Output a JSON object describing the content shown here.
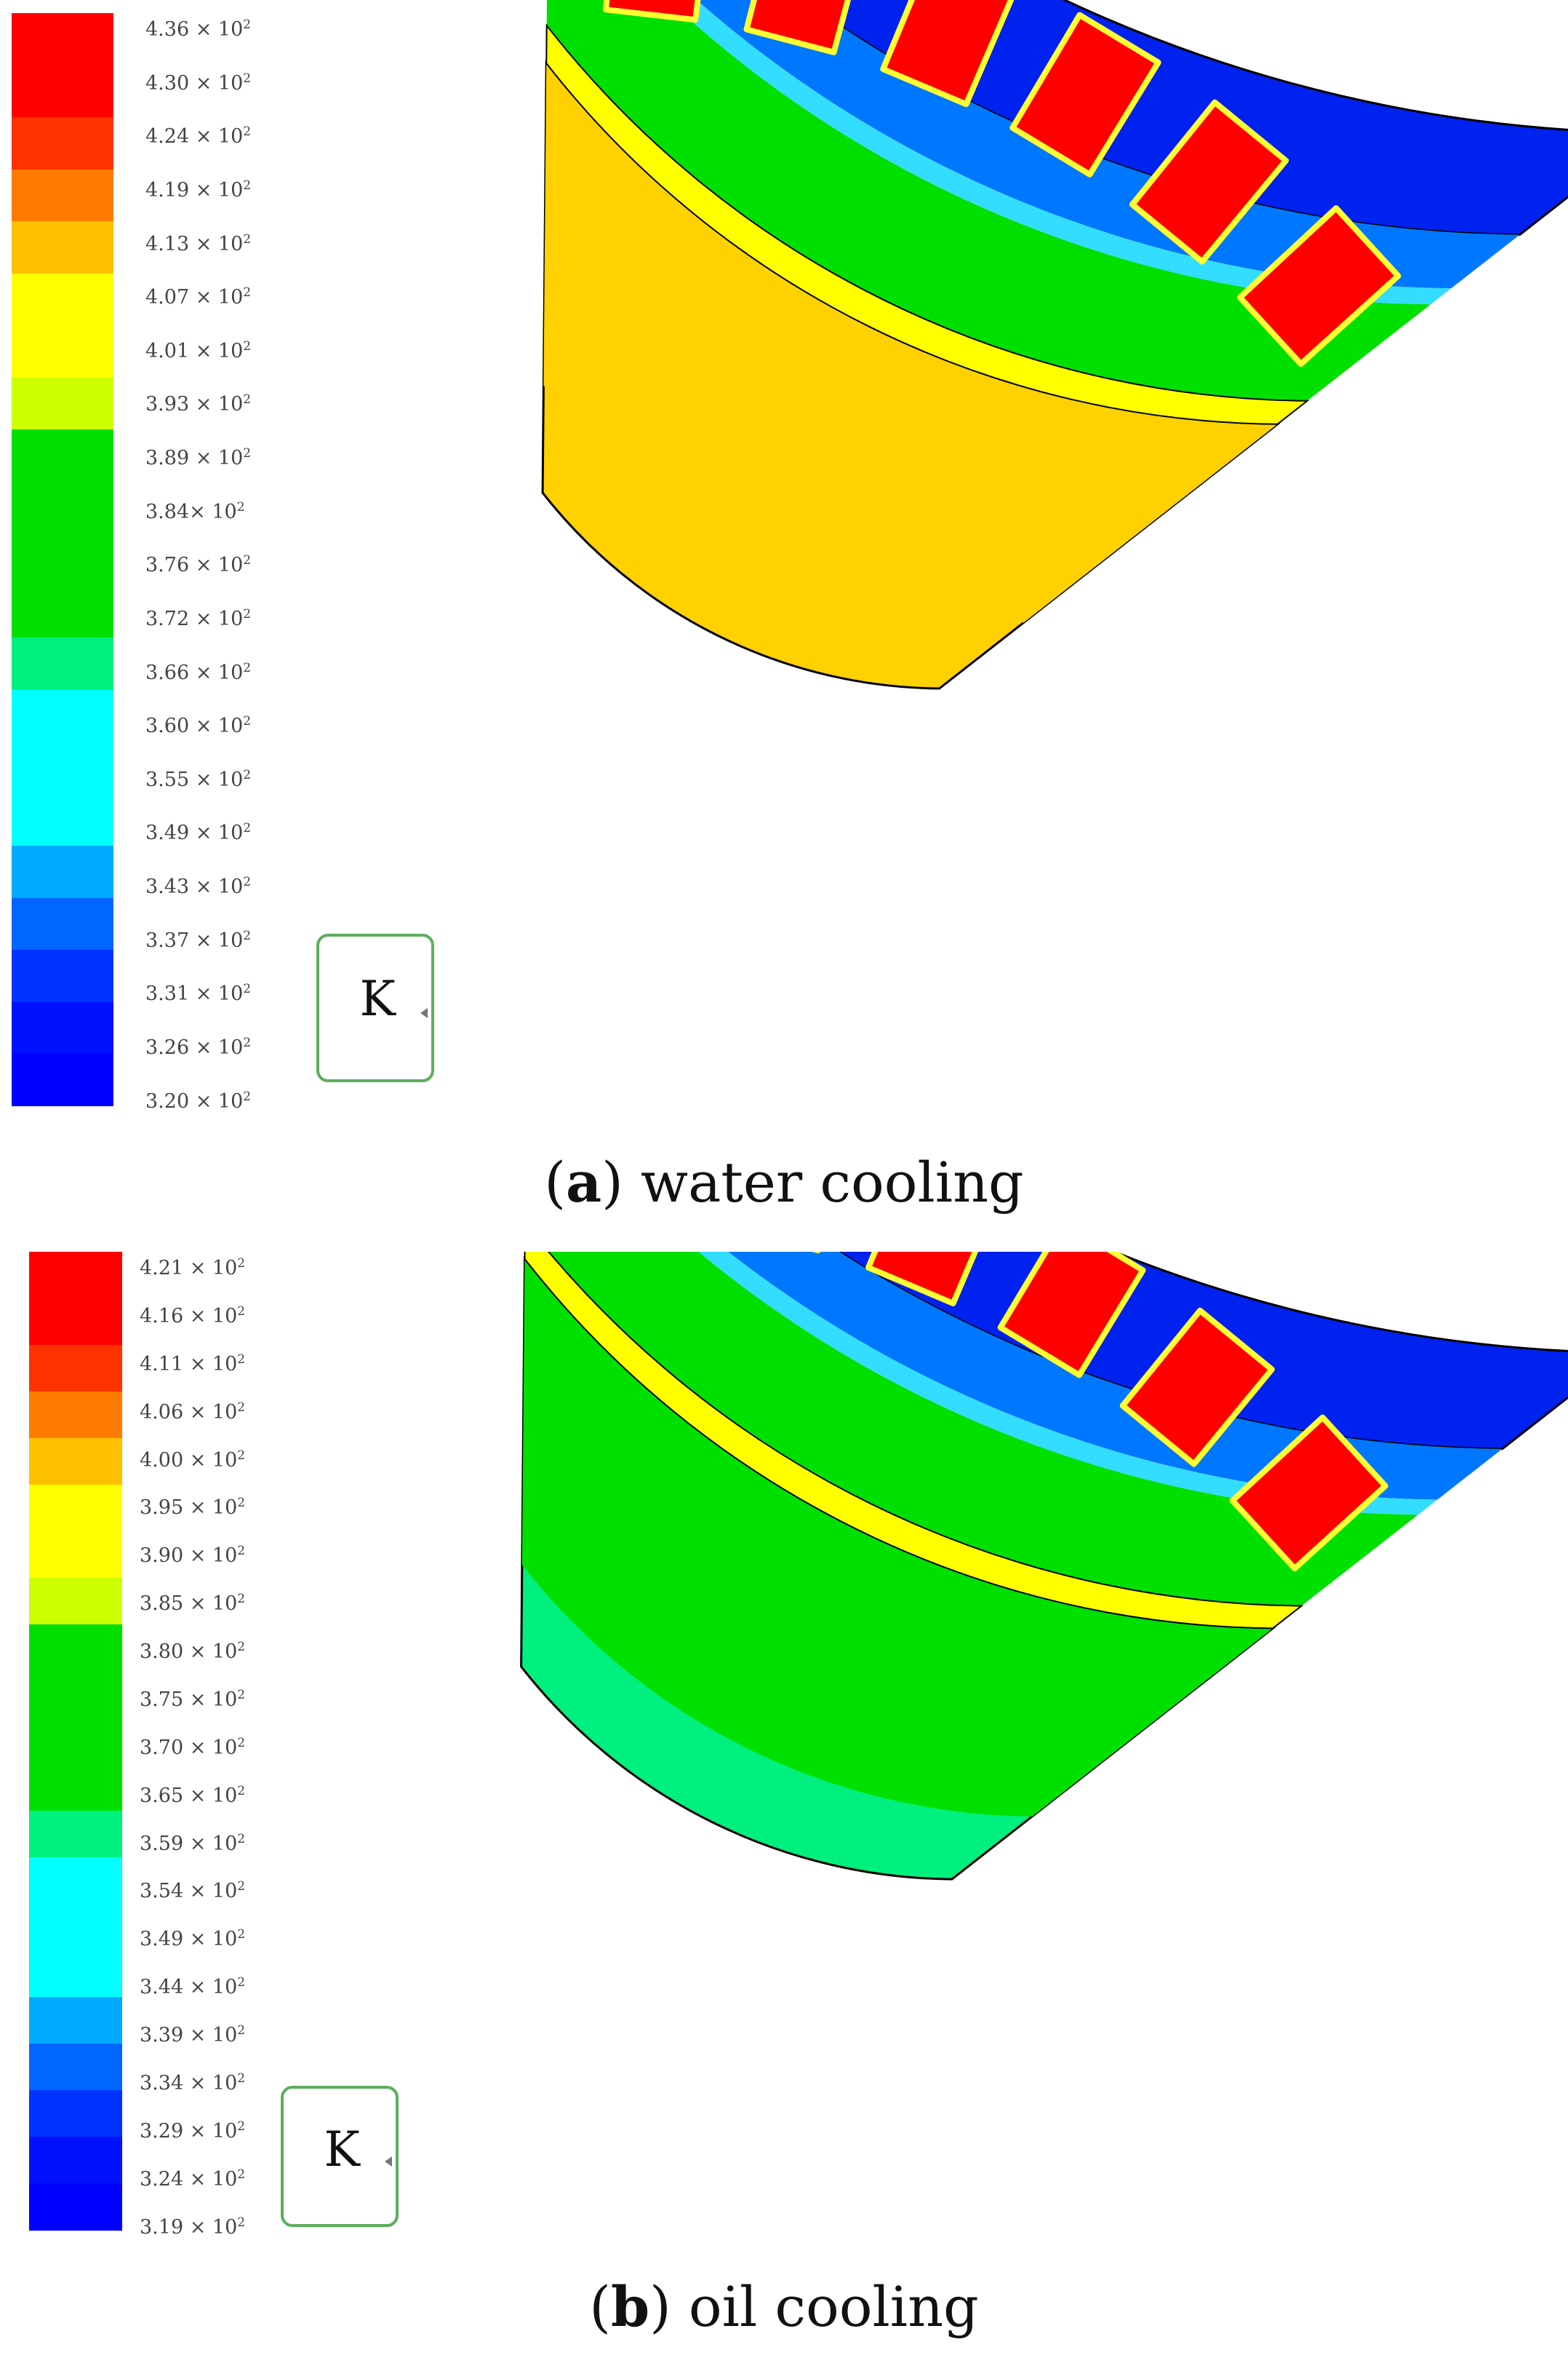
{
  "panels": [
    {
      "id": "a",
      "caption_letter": "a",
      "caption_text": "water cooling",
      "unit": "K",
      "colorbar": {
        "ticks": [
          "4.36 × 10",
          "4.30 × 10",
          "4.24 × 10",
          "4.19 × 10",
          "4.13 × 10",
          "4.07 × 10",
          "4.01 × 10",
          "3.93 × 10",
          "3.89 × 10",
          "3.84× 10",
          "3.76 × 10",
          "3.72 × 10",
          "3.66 × 10",
          "3.60 × 10",
          "3.55 × 10",
          "3.49 × 10",
          "3.43 × 10",
          "3.37 × 10",
          "3.31 × 10",
          "3.26 × 10",
          "3.20 × 10"
        ],
        "exponent": "2",
        "colors": [
          "#ff0000",
          "#ff0000",
          "#ff3300",
          "#ff7a00",
          "#ffc000",
          "#ffff00",
          "#ffff00",
          "#ccff00",
          "#00e000",
          "#00e000",
          "#00e000",
          "#00e000",
          "#00f080",
          "#00ffff",
          "#00ffff",
          "#00ffff",
          "#00aaff",
          "#0066ff",
          "#0033ff",
          "#0011ff",
          "#0000ff"
        ]
      },
      "rotor_colors": [
        "#ffd100",
        "#ffd100"
      ],
      "colors": {
        "slot": "#ff0000",
        "tooth": "#00e000",
        "yoke_inner": "#0077ff",
        "yoke_outer": "#0022ee",
        "gap": "#ffff00"
      }
    },
    {
      "id": "b",
      "caption_letter": "b",
      "caption_text": "oil cooling",
      "unit": "K",
      "colorbar": {
        "ticks": [
          "4.21 × 10",
          "4.16 × 10",
          "4.11 × 10",
          "4.06 × 10",
          "4.00 × 10",
          "3.95 × 10",
          "3.90 × 10",
          "3.85 × 10",
          "3.80 × 10",
          "3.75 × 10",
          "3.70 × 10",
          "3.65 × 10",
          "3.59 × 10",
          "3.54 × 10",
          "3.49 × 10",
          "3.44 × 10",
          "3.39 × 10",
          "3.34 × 10",
          "3.29 × 10",
          "3.24 × 10",
          "3.19 × 10"
        ],
        "exponent": "2",
        "colors": [
          "#ff0000",
          "#ff0000",
          "#ff3300",
          "#ff7a00",
          "#ffc000",
          "#ffff00",
          "#ffff00",
          "#ccff00",
          "#00e000",
          "#00e000",
          "#00e000",
          "#00e000",
          "#00f080",
          "#00ffff",
          "#00ffff",
          "#00ffff",
          "#00aaff",
          "#0066ff",
          "#0033ff",
          "#0011ff",
          "#0000ff"
        ]
      },
      "rotor_colors": [
        "#00f080",
        "#00e000"
      ],
      "colors": {
        "slot": "#ff0000",
        "tooth": "#00e000",
        "yoke_inner": "#0077ff",
        "yoke_outer": "#0022ee",
        "gap": "#ffff00"
      }
    }
  ]
}
